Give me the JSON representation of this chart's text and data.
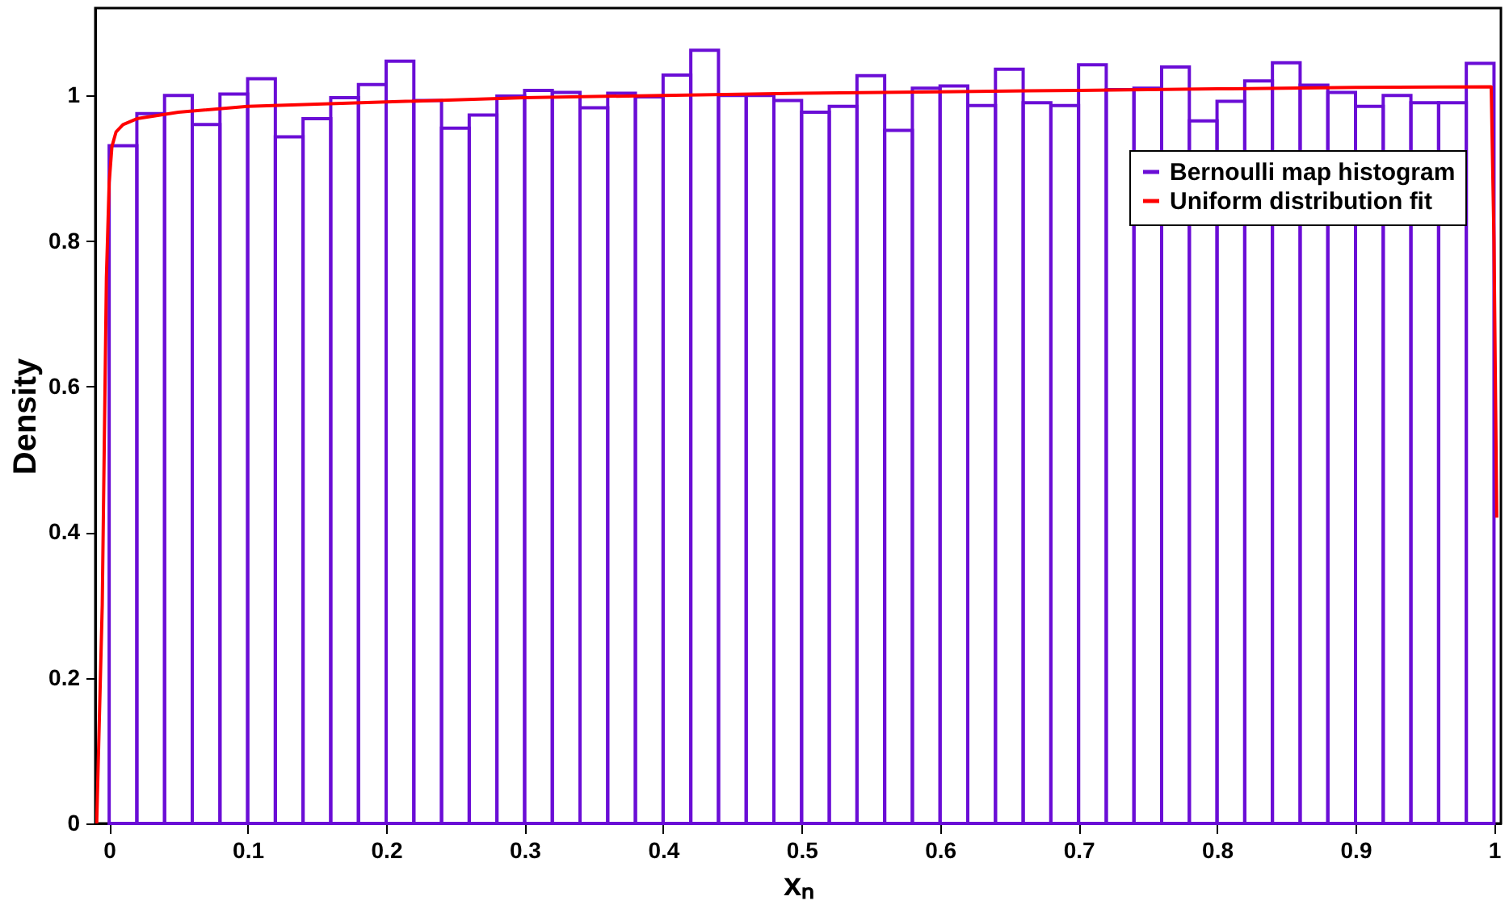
{
  "chart_data": {
    "type": "histogram",
    "xlabel": "xₙ",
    "ylabel": "Density",
    "bins": [
      0,
      0.02,
      0.04,
      0.06,
      0.08,
      0.1,
      0.12,
      0.14,
      0.16,
      0.18,
      0.2,
      0.22,
      0.24,
      0.26,
      0.28,
      0.3,
      0.32,
      0.34,
      0.36,
      0.38,
      0.4,
      0.42,
      0.44,
      0.46,
      0.48,
      0.5,
      0.52,
      0.54,
      0.56,
      0.58,
      0.6,
      0.62,
      0.64,
      0.66,
      0.68,
      0.7,
      0.72,
      0.74,
      0.76,
      0.78,
      0.8,
      0.82,
      0.84,
      0.86,
      0.88,
      0.9,
      0.92,
      0.94,
      0.96,
      0.98,
      1.0
    ],
    "series": [
      {
        "name": "Bernoulli map histogram",
        "color": "#6a0dd6",
        "values": [
          0.931,
          0.975,
          1.0,
          0.96,
          1.002,
          1.023,
          0.943,
          0.968,
          0.997,
          1.015,
          1.047,
          0.993,
          0.955,
          0.973,
          0.999,
          1.007,
          1.004,
          0.983,
          1.003,
          0.998,
          1.028,
          1.062,
          1.0,
          1.0,
          0.993,
          0.977,
          0.985,
          1.027,
          0.952,
          1.01,
          1.013,
          0.986,
          1.036,
          0.99,
          0.986,
          1.042,
          1.008,
          1.01,
          1.039,
          0.965,
          0.992,
          1.02,
          1.045,
          1.014,
          1.004,
          0.985,
          1.0,
          0.99,
          0.99,
          1.044
        ]
      },
      {
        "name": "Uniform distribution fit",
        "type": "line",
        "color": "#ff0000",
        "x": [
          -0.009,
          -0.005,
          -0.002,
          0.0,
          0.002,
          0.005,
          0.01,
          0.02,
          0.05,
          0.1,
          0.2,
          0.3,
          0.4,
          0.5,
          0.6,
          0.7,
          0.8,
          0.9,
          0.998,
          1.0,
          1.002
        ],
        "values": [
          0.0,
          0.3,
          0.75,
          0.88,
          0.93,
          0.95,
          0.96,
          0.968,
          0.977,
          0.985,
          0.991,
          0.997,
          1.0,
          1.003,
          1.005,
          1.007,
          1.009,
          1.011,
          1.012,
          0.8,
          0.42
        ]
      }
    ],
    "xlim": [
      -0.01,
      1.005
    ],
    "ylim": [
      0,
      1.12
    ],
    "xticks": [
      0,
      0.1,
      0.2,
      0.3,
      0.4,
      0.5,
      0.6,
      0.7,
      0.8,
      0.9,
      1
    ],
    "yticks": [
      0,
      0.2,
      0.4,
      0.6,
      0.8,
      1
    ],
    "grid": false,
    "legend": "top right"
  }
}
